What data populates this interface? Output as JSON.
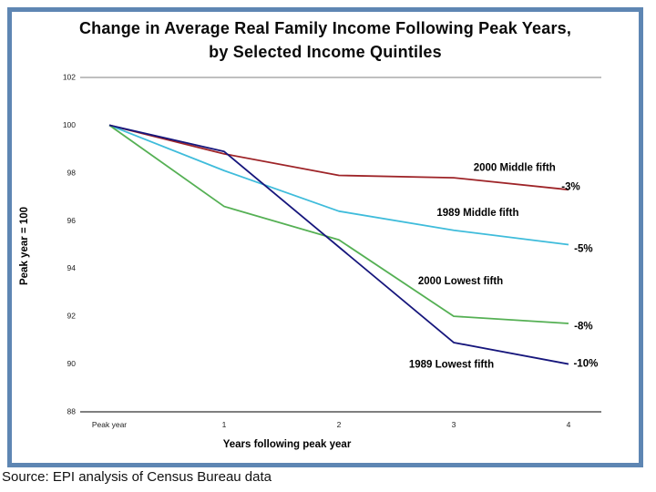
{
  "title": {
    "line1": "Change in Average Real Family Income Following Peak Years,",
    "line2": "by Selected Income Quintiles"
  },
  "source_note": "Source: EPI analysis of Census Bureau data",
  "colors": {
    "frame_border": "#5e86b3",
    "axis_top_line": "#999999",
    "axis_bottom_line": "#333333",
    "series_2000_middle": "#9e2428",
    "series_1989_middle": "#3fbcdb",
    "series_2000_lowest": "#55b054",
    "series_1989_lowest": "#16167c"
  },
  "chart_data": {
    "type": "line",
    "title": "Change in Average Real Family Income Following Peak Years, by Selected Income Quintiles",
    "xlabel": "Years following peak year",
    "ylabel": "Peak year = 100",
    "ylim": [
      88,
      102
    ],
    "y_ticks": [
      102,
      100,
      98,
      96,
      94,
      92,
      90,
      88
    ],
    "categories": [
      "Peak year",
      "1",
      "2",
      "3",
      "4"
    ],
    "grid": "horizontal boundary lines only (top at 102, bottom axis at 88)",
    "legend_position": "inline labels next to lines",
    "series": [
      {
        "name": "2000 Middle fifth",
        "color": "#9e2428",
        "values": [
          100,
          98.8,
          97.9,
          97.8,
          97.3
        ],
        "end_label": "-3%",
        "label_pos": {
          "x": 3.53,
          "y": 98.25
        },
        "end_label_pos": {
          "x": 4.02,
          "y": 97.45
        }
      },
      {
        "name": "1989 Middle fifth",
        "color": "#3fbcdb",
        "values": [
          100,
          98.1,
          96.4,
          95.6,
          95.0
        ],
        "end_label": "-5%",
        "label_pos": {
          "x": 3.21,
          "y": 96.35
        },
        "end_label_pos": {
          "x": 4.13,
          "y": 94.85
        }
      },
      {
        "name": "2000 Lowest fifth",
        "color": "#55b054",
        "values": [
          100,
          96.6,
          95.2,
          92.0,
          91.7
        ],
        "end_label": "-8%",
        "label_pos": {
          "x": 3.06,
          "y": 93.5
        },
        "end_label_pos": {
          "x": 4.13,
          "y": 91.6
        }
      },
      {
        "name": "1989 Lowest fifth",
        "color": "#16167c",
        "values": [
          100,
          98.9,
          94.9,
          90.9,
          90.0
        ],
        "end_label": "-10%",
        "label_pos": {
          "x": 2.98,
          "y": 90.0
        },
        "end_label_pos": {
          "x": 4.15,
          "y": 90.05
        }
      }
    ]
  }
}
